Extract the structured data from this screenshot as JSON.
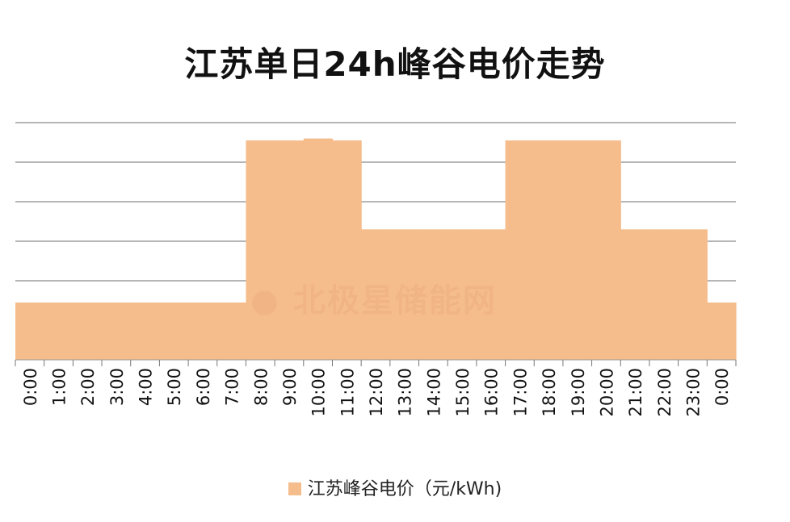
{
  "chart_data": {
    "type": "area",
    "title": "江苏单日24h峰谷电价走势",
    "xlabel": "",
    "ylabel": "",
    "categories": [
      "0:00",
      "1:00",
      "2:00",
      "3:00",
      "4:00",
      "5:00",
      "6:00",
      "7:00",
      "8:00",
      "9:00",
      "10:00",
      "11:00",
      "12:00",
      "13:00",
      "14:00",
      "15:00",
      "16:00",
      "17:00",
      "18:00",
      "19:00",
      "20:00",
      "21:00",
      "22:00",
      "23:00",
      "0:00"
    ],
    "series": [
      {
        "name": "江苏峰谷电价（元/kWh)",
        "color": "#f6bd8c",
        "values": [
          0.29,
          0.29,
          0.29,
          0.29,
          0.29,
          0.29,
          0.29,
          0.29,
          1.11,
          1.11,
          1.12,
          1.11,
          0.66,
          0.66,
          0.66,
          0.66,
          0.66,
          1.11,
          1.11,
          1.11,
          1.11,
          0.66,
          0.66,
          0.66,
          0.29
        ]
      }
    ],
    "ylim": [
      0,
      1.2
    ],
    "y_tick_labels_shown": false,
    "grid": true,
    "legend": "bottom",
    "watermark": "北极星储能网"
  }
}
